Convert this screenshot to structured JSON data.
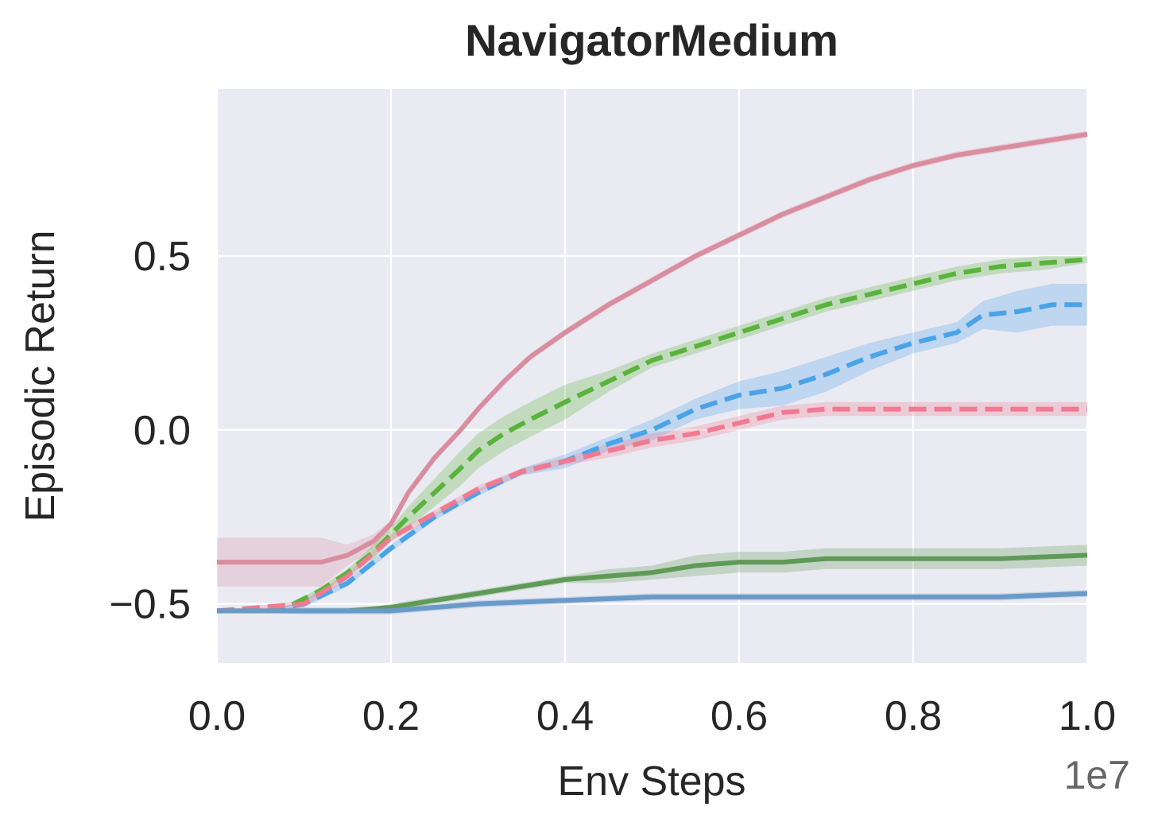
{
  "chart_data": {
    "type": "line",
    "title": "NavigatorMedium",
    "xlabel": "Env Steps",
    "ylabel": "Episodic Return",
    "x_offset_label": "1e7",
    "xlim": [
      0.0,
      1.0
    ],
    "ylim": [
      -0.67,
      0.98
    ],
    "x_ticks": [
      0.0,
      0.2,
      0.4,
      0.6,
      0.8,
      1.0
    ],
    "x_tick_labels": [
      "0.0",
      "0.2",
      "0.4",
      "0.6",
      "0.8",
      "1.0"
    ],
    "y_ticks": [
      -0.5,
      0.0,
      0.5
    ],
    "y_tick_labels": [
      "−0.5",
      "0.0",
      "0.5"
    ],
    "grid": true,
    "background": "#eaeaf2",
    "series": [
      {
        "color": "#d98ea0",
        "dash": false,
        "x": [
          0.0,
          0.12,
          0.15,
          0.18,
          0.2,
          0.22,
          0.25,
          0.28,
          0.3,
          0.33,
          0.36,
          0.4,
          0.45,
          0.5,
          0.55,
          0.6,
          0.65,
          0.7,
          0.75,
          0.8,
          0.85,
          0.9,
          0.95,
          1.0
        ],
        "y": [
          -0.38,
          -0.38,
          -0.36,
          -0.32,
          -0.27,
          -0.18,
          -0.08,
          0.0,
          0.06,
          0.14,
          0.21,
          0.28,
          0.36,
          0.43,
          0.5,
          0.56,
          0.62,
          0.67,
          0.72,
          0.76,
          0.79,
          0.81,
          0.83,
          0.85
        ],
        "band": [
          0.07,
          0.07,
          0.03,
          0.02,
          0.01,
          0.01,
          0.01,
          0.01,
          0.01,
          0.01,
          0.01,
          0.01,
          0.01,
          0.01,
          0.01,
          0.01,
          0.01,
          0.01,
          0.01,
          0.01,
          0.01,
          0.01,
          0.01,
          0.01
        ]
      },
      {
        "color": "#5ab33c",
        "dash": true,
        "x": [
          0.0,
          0.05,
          0.08,
          0.12,
          0.15,
          0.18,
          0.2,
          0.22,
          0.25,
          0.28,
          0.3,
          0.33,
          0.36,
          0.4,
          0.45,
          0.5,
          0.55,
          0.6,
          0.65,
          0.7,
          0.75,
          0.8,
          0.85,
          0.9,
          0.95,
          1.0
        ],
        "y": [
          -0.52,
          -0.52,
          -0.51,
          -0.46,
          -0.41,
          -0.35,
          -0.3,
          -0.25,
          -0.18,
          -0.11,
          -0.06,
          -0.01,
          0.03,
          0.08,
          0.14,
          0.2,
          0.24,
          0.28,
          0.32,
          0.36,
          0.39,
          0.42,
          0.45,
          0.47,
          0.48,
          0.49
        ],
        "band": [
          0.0,
          0.0,
          0.0,
          0.01,
          0.01,
          0.02,
          0.02,
          0.03,
          0.04,
          0.05,
          0.05,
          0.05,
          0.05,
          0.05,
          0.03,
          0.02,
          0.02,
          0.02,
          0.02,
          0.02,
          0.02,
          0.02,
          0.02,
          0.02,
          0.02,
          0.01
        ]
      },
      {
        "color": "#4aa3e8",
        "dash": true,
        "x": [
          0.0,
          0.06,
          0.1,
          0.15,
          0.2,
          0.25,
          0.3,
          0.35,
          0.4,
          0.45,
          0.5,
          0.55,
          0.6,
          0.65,
          0.7,
          0.75,
          0.8,
          0.85,
          0.88,
          0.92,
          0.96,
          1.0
        ],
        "y": [
          -0.52,
          -0.52,
          -0.5,
          -0.44,
          -0.34,
          -0.25,
          -0.18,
          -0.12,
          -0.09,
          -0.04,
          0.0,
          0.06,
          0.1,
          0.12,
          0.16,
          0.21,
          0.25,
          0.28,
          0.33,
          0.34,
          0.36,
          0.36
        ],
        "band": [
          0.0,
          0.0,
          0.01,
          0.01,
          0.01,
          0.01,
          0.01,
          0.01,
          0.02,
          0.02,
          0.03,
          0.03,
          0.04,
          0.05,
          0.05,
          0.04,
          0.03,
          0.03,
          0.04,
          0.06,
          0.06,
          0.06
        ]
      },
      {
        "color": "#f07a91",
        "dash": true,
        "x": [
          0.0,
          0.1,
          0.15,
          0.2,
          0.25,
          0.3,
          0.35,
          0.4,
          0.45,
          0.5,
          0.55,
          0.6,
          0.65,
          0.7,
          0.75,
          0.8,
          0.85,
          0.9,
          0.95,
          1.0
        ],
        "y": [
          -0.52,
          -0.5,
          -0.42,
          -0.31,
          -0.24,
          -0.17,
          -0.12,
          -0.09,
          -0.06,
          -0.03,
          -0.01,
          0.02,
          0.05,
          0.06,
          0.06,
          0.06,
          0.06,
          0.06,
          0.06,
          0.06
        ],
        "band": [
          0.0,
          0.01,
          0.01,
          0.01,
          0.01,
          0.01,
          0.01,
          0.01,
          0.02,
          0.02,
          0.02,
          0.02,
          0.02,
          0.02,
          0.02,
          0.02,
          0.02,
          0.02,
          0.02,
          0.02
        ]
      },
      {
        "color": "#5f9a57",
        "dash": false,
        "x": [
          0.0,
          0.1,
          0.15,
          0.2,
          0.25,
          0.3,
          0.35,
          0.4,
          0.45,
          0.5,
          0.55,
          0.6,
          0.65,
          0.7,
          0.8,
          0.9,
          1.0
        ],
        "y": [
          -0.52,
          -0.52,
          -0.52,
          -0.51,
          -0.49,
          -0.47,
          -0.45,
          -0.43,
          -0.42,
          -0.41,
          -0.39,
          -0.38,
          -0.38,
          -0.37,
          -0.37,
          -0.37,
          -0.36
        ],
        "band": [
          0.0,
          0.0,
          0.0,
          0.01,
          0.01,
          0.01,
          0.01,
          0.01,
          0.02,
          0.02,
          0.03,
          0.03,
          0.03,
          0.03,
          0.03,
          0.03,
          0.03
        ]
      },
      {
        "color": "#6a9ac8",
        "dash": false,
        "x": [
          0.0,
          0.1,
          0.2,
          0.3,
          0.4,
          0.5,
          0.6,
          0.7,
          0.8,
          0.9,
          1.0
        ],
        "y": [
          -0.52,
          -0.52,
          -0.52,
          -0.5,
          -0.49,
          -0.48,
          -0.48,
          -0.48,
          -0.48,
          -0.48,
          -0.47
        ],
        "band": [
          0.0,
          0.01,
          0.01,
          0.01,
          0.01,
          0.01,
          0.01,
          0.01,
          0.01,
          0.01,
          0.01
        ]
      }
    ]
  }
}
